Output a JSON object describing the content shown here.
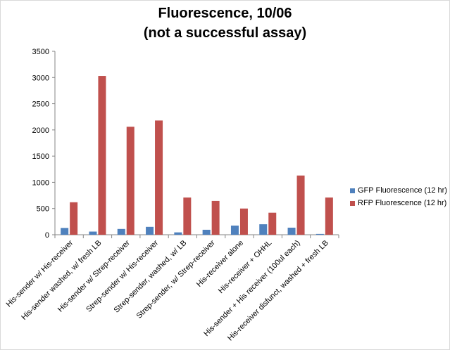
{
  "chart_data": {
    "type": "bar",
    "title": "Fluorescence, 10/06",
    "subtitle": "(not a successful assay)",
    "xlabel": "",
    "ylabel": "",
    "ylim": [
      0,
      3500
    ],
    "yticks": [
      0,
      500,
      1000,
      1500,
      2000,
      2500,
      3000,
      3500
    ],
    "grid": false,
    "legend_position": "right",
    "categories": [
      "His-sender w/ His-receiver",
      "His-sender washed, w/ fresh LB",
      "His-sender w/ Strep-receiver",
      "Strep-sender w/ His-receiver",
      "Strep-sender, washed, w/ LB",
      "Strep-sender, w/ Strep-receiver",
      "His-receiver alone",
      "His-receiver + OHHL",
      "His-sender + His receiver (100ul each)",
      "His-receiver disfunct, washed + fresh LB"
    ],
    "series": [
      {
        "name": "GFP Fluorescence (12 hr)",
        "color": "#4f81bd",
        "values": [
          130,
          60,
          110,
          150,
          45,
          95,
          175,
          200,
          135,
          15
        ]
      },
      {
        "name": "RFP Fluorescence (12 hr)",
        "color": "#c0504d",
        "values": [
          620,
          3030,
          2060,
          2180,
          710,
          645,
          500,
          420,
          1130,
          710
        ]
      }
    ]
  }
}
